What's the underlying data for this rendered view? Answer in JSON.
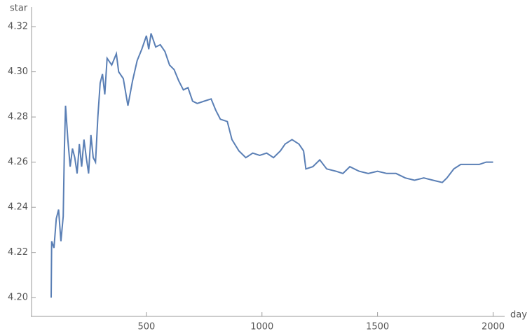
{
  "chart_data": {
    "type": "line",
    "x_label": "day",
    "y_label": "star",
    "x": [
      88,
      90,
      100,
      110,
      120,
      130,
      140,
      145,
      150,
      160,
      170,
      180,
      190,
      200,
      210,
      220,
      230,
      240,
      250,
      260,
      270,
      280,
      290,
      300,
      310,
      320,
      330,
      350,
      370,
      380,
      400,
      420,
      440,
      460,
      480,
      500,
      510,
      520,
      540,
      560,
      580,
      600,
      620,
      640,
      660,
      680,
      700,
      720,
      750,
      780,
      800,
      820,
      850,
      870,
      900,
      930,
      960,
      990,
      1020,
      1050,
      1080,
      1100,
      1130,
      1160,
      1180,
      1190,
      1220,
      1250,
      1280,
      1320,
      1350,
      1380,
      1420,
      1460,
      1500,
      1540,
      1580,
      1620,
      1660,
      1700,
      1740,
      1780,
      1800,
      1830,
      1860,
      1900,
      1940,
      1970,
      2000
    ],
    "series": [
      {
        "color": "#5a7fb5",
        "values": [
          4.2,
          4.225,
          4.222,
          4.235,
          4.239,
          4.225,
          4.236,
          4.265,
          4.285,
          4.27,
          4.258,
          4.266,
          4.262,
          4.255,
          4.268,
          4.258,
          4.27,
          4.262,
          4.255,
          4.272,
          4.262,
          4.26,
          4.28,
          4.295,
          4.299,
          4.29,
          4.306,
          4.303,
          4.308,
          4.3,
          4.297,
          4.285,
          4.296,
          4.305,
          4.31,
          4.316,
          4.31,
          4.317,
          4.311,
          4.312,
          4.309,
          4.303,
          4.301,
          4.296,
          4.292,
          4.293,
          4.287,
          4.286,
          4.287,
          4.288,
          4.283,
          4.279,
          4.278,
          4.27,
          4.265,
          4.262,
          4.264,
          4.263,
          4.264,
          4.262,
          4.265,
          4.268,
          4.27,
          4.268,
          4.265,
          4.257,
          4.258,
          4.261,
          4.257,
          4.256,
          4.255,
          4.258,
          4.256,
          4.255,
          4.256,
          4.255,
          4.255,
          4.253,
          4.252,
          4.253,
          4.252,
          4.251,
          4.253,
          4.257,
          4.259,
          4.259,
          4.259,
          4.26,
          4.26
        ]
      }
    ],
    "xlim": [
      0,
      2050
    ],
    "ylim": [
      4.1917,
      4.3287
    ],
    "xticks": [
      500,
      1000,
      1500,
      2000
    ],
    "yticks": [
      {
        "value": 4.2,
        "label": "4.20"
      },
      4.22,
      4.24,
      4.26,
      4.28,
      {
        "value": 4.3,
        "label": "4.30"
      },
      4.32
    ]
  }
}
